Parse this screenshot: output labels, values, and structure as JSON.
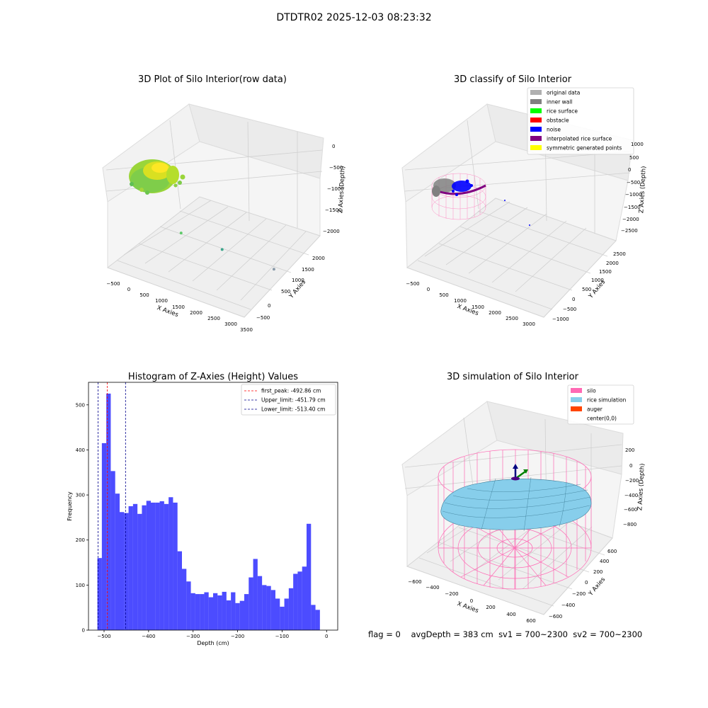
{
  "figure": {
    "suptitle": "DTDTR02 2025-12-03 08:23:32",
    "status": {
      "flag": "flag = 0",
      "avgDepth": "avgDepth = 383 cm",
      "sv1": "sv1 = 700~2300",
      "sv2": "sv2 = 700~2300"
    }
  },
  "chart_data": [
    {
      "type": "scatter",
      "title": "3D Plot of Silo Interior(row data)",
      "xlabel": "X Axies",
      "ylabel": "Y Axies",
      "zlabel": "Z Axies (Depth)",
      "xticks": [
        "−500",
        "0",
        "500",
        "1000",
        "1500",
        "2000",
        "2500",
        "3000",
        "3500"
      ],
      "yticks": [
        "−500",
        "0",
        "500",
        "1000",
        "1500",
        "2000"
      ],
      "zticks": [
        "0",
        "−500",
        "−1000",
        "−1500",
        "−2000"
      ],
      "xlim": [
        -700,
        3600
      ],
      "ylim": [
        -700,
        2200
      ],
      "zlim": [
        -2300,
        100
      ],
      "outliers": [
        {
          "x": 800,
          "y": 300,
          "z": -1000
        },
        {
          "x": 1800,
          "y": 700,
          "z": -1800
        },
        {
          "x": 3300,
          "y": 900,
          "z": -2200
        }
      ],
      "colormap": [
        "#3cb371",
        "#7fd34e",
        "#b5de2b",
        "#fde725"
      ]
    },
    {
      "type": "scatter",
      "title": "3D classify of Silo Interior",
      "xlabel": "X Axies",
      "ylabel": "Y Axies",
      "zlabel": "Z Axies (Depth)",
      "xticks": [
        "−500",
        "0",
        "500",
        "1000",
        "1500",
        "2000",
        "2500",
        "3000"
      ],
      "yticks": [
        "−1000",
        "−500",
        "0",
        "500",
        "1000",
        "1500",
        "2000",
        "2500"
      ],
      "zticks": [
        "1000",
        "500",
        "0",
        "−500",
        "−1000",
        "−1500",
        "−2000",
        "−2500"
      ],
      "legend": [
        {
          "label": "original data",
          "color": "#b0b0b0"
        },
        {
          "label": "inner wall",
          "color": "#808080"
        },
        {
          "label": "rice surface",
          "color": "#00ff00"
        },
        {
          "label": "obstacle",
          "color": "#ff0000"
        },
        {
          "label": "noise",
          "color": "#0000ff"
        },
        {
          "label": "interpolated rice surface",
          "color": "#800080"
        },
        {
          "label": "symmetric generated points",
          "color": "#ffff00"
        }
      ],
      "legend_loc": "upper right"
    },
    {
      "type": "bar",
      "title": "Histogram of Z-Axies (Height) Values",
      "xlabel": "Depth (cm)",
      "ylabel": "Frequency",
      "bin_start": -515,
      "bin_width": 10,
      "values": [
        160,
        415,
        525,
        353,
        303,
        262,
        260,
        275,
        280,
        258,
        277,
        287,
        283,
        283,
        286,
        280,
        295,
        283,
        175,
        136,
        108,
        82,
        80,
        80,
        84,
        73,
        82,
        77,
        85,
        66,
        84,
        60,
        65,
        80,
        117,
        158,
        120,
        100,
        98,
        89,
        70,
        52,
        70,
        93,
        125,
        130,
        141,
        236,
        56,
        45
      ],
      "xlim": [
        -535,
        25
      ],
      "ylim": [
        0,
        550
      ],
      "xticks": [
        -500,
        -400,
        -300,
        -200,
        -100,
        0
      ],
      "xtick_labels": [
        "−500",
        "−400",
        "−300",
        "−200",
        "−100",
        "0"
      ],
      "yticks": [
        0,
        100,
        200,
        300,
        400,
        500
      ],
      "bar_color": "#0000ff",
      "vlines": [
        {
          "label": "first_peak: -492.86 cm",
          "x": -492.86,
          "color": "#ff0000"
        },
        {
          "label": "Upper_limit: -451.79 cm",
          "x": -451.79,
          "color": "#00008b"
        },
        {
          "label": "Lower_limit: -513.40 cm",
          "x": -513.4,
          "color": "#00008b"
        }
      ],
      "legend_loc": "upper right"
    },
    {
      "type": "scatter",
      "title": "3D simulation of Silo Interior",
      "xlabel": "X Axies",
      "ylabel": "Y Axies",
      "zlabel": "Z Axies (Depth)",
      "xticks": [
        "−600",
        "−400",
        "−200",
        "0",
        "200",
        "400",
        "600"
      ],
      "yticks": [
        "−600",
        "−400",
        "−200",
        "0",
        "200",
        "400",
        "600"
      ],
      "zticks": [
        "200",
        "0",
        "−200",
        "−400",
        "−600",
        "−800"
      ],
      "legend": [
        {
          "label": "silo",
          "color": "#ff69b4"
        },
        {
          "label": "rice simulation",
          "color": "#87ceeb"
        },
        {
          "label": "auger",
          "color": "#ff4500"
        },
        {
          "label": "center(0,0)",
          "color": ""
        }
      ],
      "legend_loc": "upper right"
    }
  ]
}
